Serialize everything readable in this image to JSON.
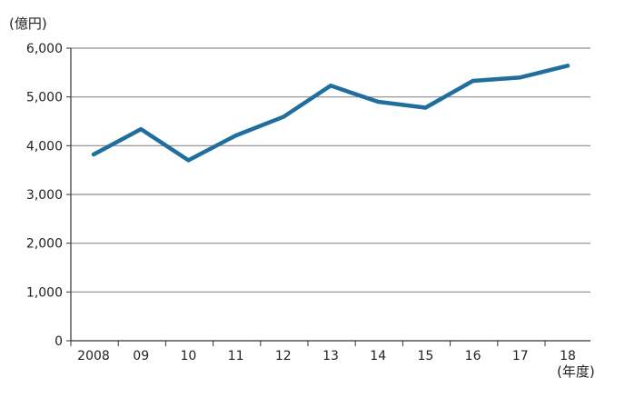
{
  "chart_data": {
    "type": "line",
    "ylabel": "(億円)",
    "xlabel": "(年度)",
    "categories": [
      "2008",
      "09",
      "10",
      "11",
      "12",
      "13",
      "14",
      "15",
      "16",
      "17",
      "18"
    ],
    "series": [
      {
        "values": [
          3820,
          4340,
          3700,
          4210,
          4590,
          5230,
          4900,
          4780,
          5330,
          5400,
          5640
        ]
      }
    ],
    "ylim": [
      0,
      6000
    ],
    "yticks": [
      0,
      1000,
      2000,
      3000,
      4000,
      5000,
      6000
    ],
    "ytick_labels": [
      "0",
      "1,000",
      "2,000",
      "3,000",
      "4,000",
      "5,000",
      "6,000"
    ],
    "grid": true,
    "colors": {
      "line": "#1f6e9e",
      "grid": "#8c8c8c",
      "axis": "#333333"
    }
  }
}
